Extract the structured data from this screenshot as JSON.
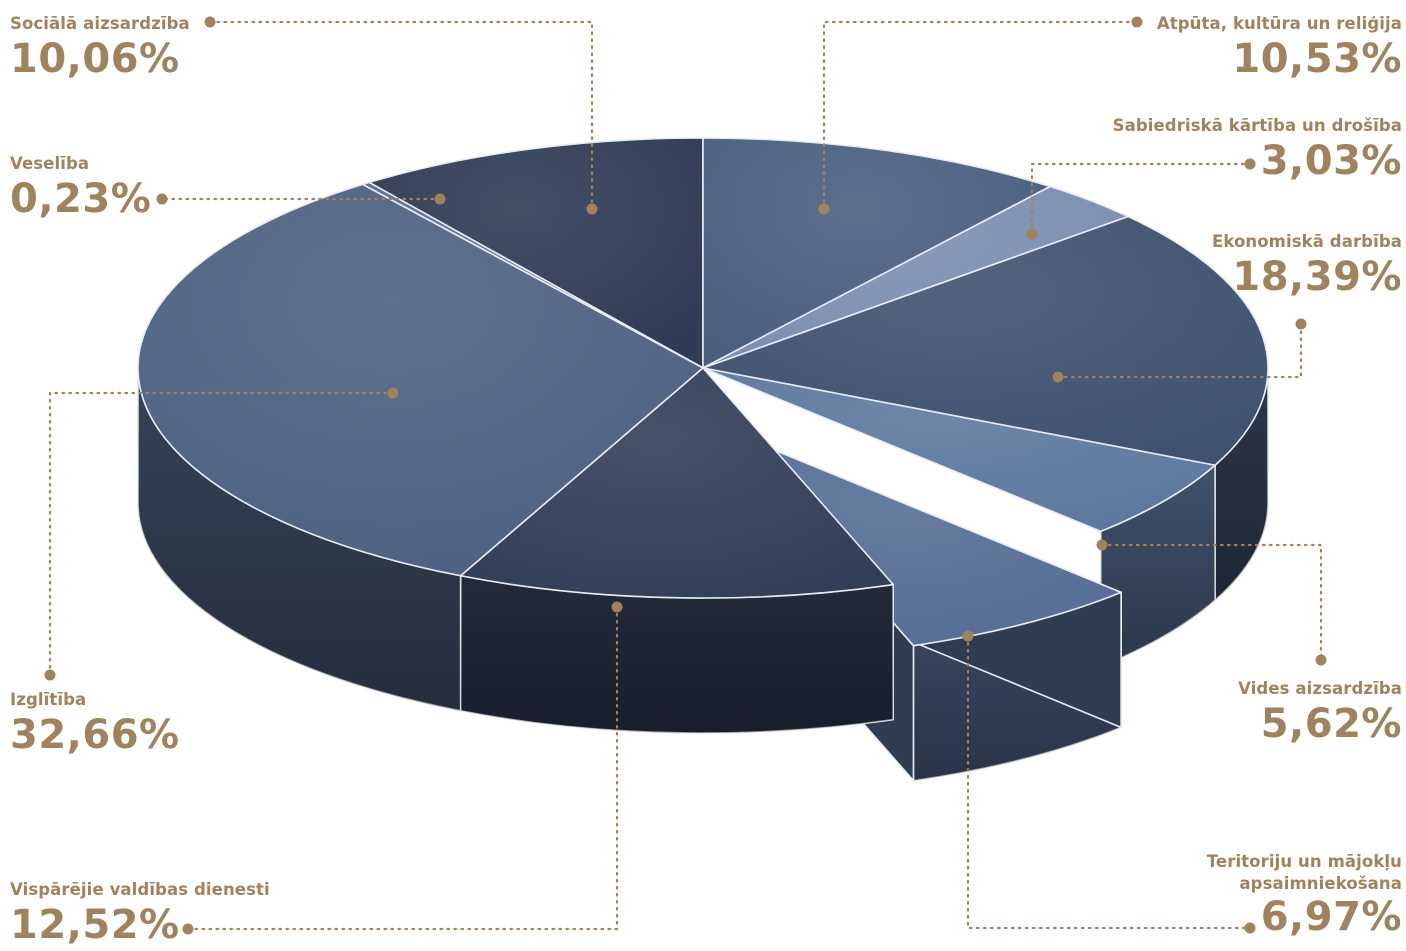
{
  "chart_data": {
    "type": "pie",
    "style": "3d-exploded",
    "unit": "%",
    "slices": [
      {
        "label": "Atpūta, kultūra un reliģija",
        "value": 10.53,
        "display": "10,53%",
        "color": "#4a5f80"
      },
      {
        "label": "Sabiedriskā kārtība un drošība",
        "value": 3.03,
        "display": "3,03%",
        "color": "#7b8fb0"
      },
      {
        "label": "Ekonomiskā darbība",
        "value": 18.39,
        "display": "18,39%",
        "color": "#3f526f"
      },
      {
        "label": "Vides aizsardzība",
        "value": 5.62,
        "display": "5,62%",
        "color": "#5d789f"
      },
      {
        "label": "Teritoriju un mājokļu apsaimniekošana",
        "value": 6.97,
        "display": "6,97%",
        "color": "#566e96",
        "exploded": true
      },
      {
        "label": "Vispārējie valdības dienesti",
        "value": 12.52,
        "display": "12,52%",
        "color": "#323f59"
      },
      {
        "label": "Izglītība",
        "value": 32.66,
        "display": "32,66%",
        "color": "#4d6282"
      },
      {
        "label": "Veselība",
        "value": 0.23,
        "display": "0,23%",
        "color": "#5a6f90"
      },
      {
        "label": "Sociālā aizsardzība",
        "value": 10.06,
        "display": "10,06%",
        "color": "#2f3c55"
      }
    ],
    "colors": {
      "label_text": "#a0825c",
      "leader_line": "#a0825c"
    }
  },
  "labels": {
    "atputa": {
      "name": "Atpūta, kultūra un reliģija",
      "value": "10,53%"
    },
    "sabiedriska": {
      "name": "Sabiedriskā kārtība un drošība",
      "value": "3,03%"
    },
    "ekonomiska": {
      "name": "Ekonomiskā darbība",
      "value": "18,39%"
    },
    "vides": {
      "name": "Vides aizsardzība",
      "value": "5,62%"
    },
    "teritoriju": {
      "name1": "Teritoriju un mājokļu",
      "name2": "apsaimniekošana",
      "value": "6,97%"
    },
    "visparejie": {
      "name": "Vispārējie valdības dienesti",
      "value": "12,52%"
    },
    "izglitiba": {
      "name": "Izglītība",
      "value": "32,66%"
    },
    "veseliba": {
      "name": "Veselība",
      "value": "0,23%"
    },
    "sociala": {
      "name": "Sociālā aizsardzība",
      "value": "10,06%"
    }
  }
}
